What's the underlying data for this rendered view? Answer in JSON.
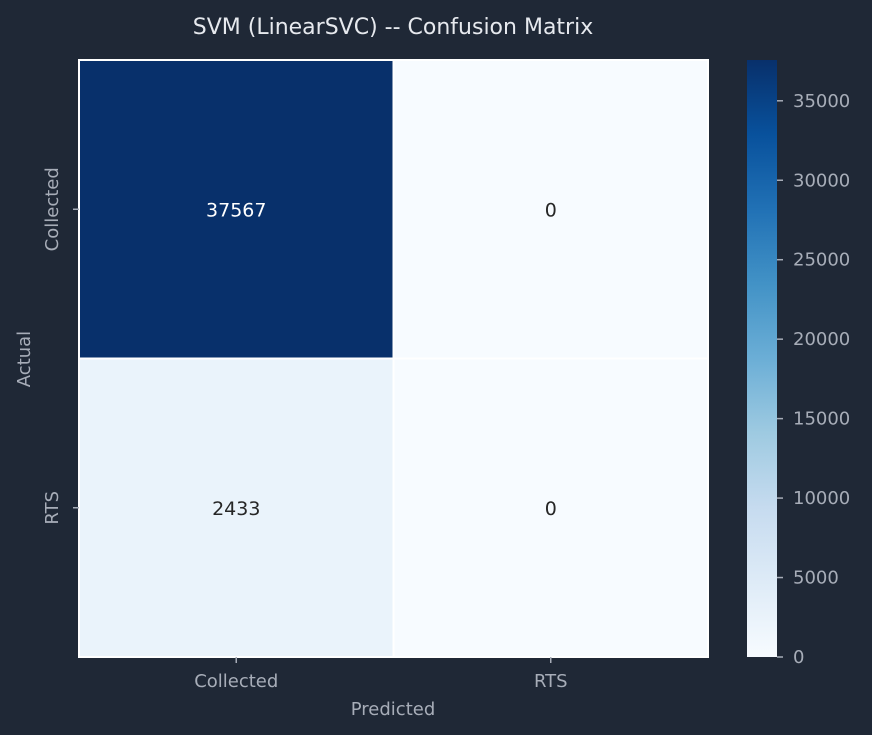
{
  "chart_data": {
    "type": "heatmap",
    "title": "SVM (LinearSVC) -- Confusion Matrix",
    "xlabel": "Predicted",
    "ylabel": "Actual",
    "x_categories": [
      "Collected",
      "RTS"
    ],
    "y_categories": [
      "Collected",
      "RTS"
    ],
    "values": [
      [
        37567,
        0
      ],
      [
        2433,
        0
      ]
    ],
    "colorscale": "Blues",
    "colorbar": {
      "range": [
        0,
        37567
      ],
      "ticks": [
        0,
        5000,
        10000,
        15000,
        20000,
        25000,
        30000,
        35000
      ]
    }
  },
  "colors": {
    "background": "#1f2836",
    "text_title": "#e6e9ee",
    "text_axis": "#a7adb8",
    "cell_gap": "#ffffff"
  }
}
